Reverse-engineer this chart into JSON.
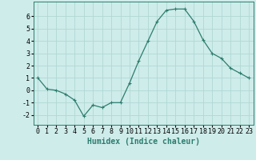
{
  "x": [
    0,
    1,
    2,
    3,
    4,
    5,
    6,
    7,
    8,
    9,
    10,
    11,
    12,
    13,
    14,
    15,
    16,
    17,
    18,
    19,
    20,
    21,
    22,
    23
  ],
  "y": [
    1,
    0.1,
    0.0,
    -0.3,
    -0.8,
    -2.1,
    -1.2,
    -1.4,
    -1.0,
    -1.0,
    0.6,
    2.4,
    4.0,
    5.6,
    6.5,
    6.6,
    6.6,
    5.6,
    4.1,
    3.0,
    2.6,
    1.8,
    1.4,
    1.0
  ],
  "line_color": "#2d7d6e",
  "marker": "+",
  "marker_size": 3,
  "linewidth": 0.9,
  "bg_color": "#ceecea",
  "grid_color": "#b0d8d4",
  "xlabel": "Humidex (Indice chaleur)",
  "xlabel_fontsize": 7,
  "ylabel_ticks": [
    -2,
    -1,
    0,
    1,
    2,
    3,
    4,
    5,
    6
  ],
  "xlim": [
    -0.5,
    23.5
  ],
  "ylim": [
    -2.8,
    7.2
  ],
  "xtick_labels": [
    "0",
    "1",
    "2",
    "3",
    "4",
    "5",
    "6",
    "7",
    "8",
    "9",
    "10",
    "11",
    "12",
    "13",
    "14",
    "15",
    "16",
    "17",
    "18",
    "19",
    "20",
    "21",
    "22",
    "23"
  ],
  "tick_fontsize": 6
}
